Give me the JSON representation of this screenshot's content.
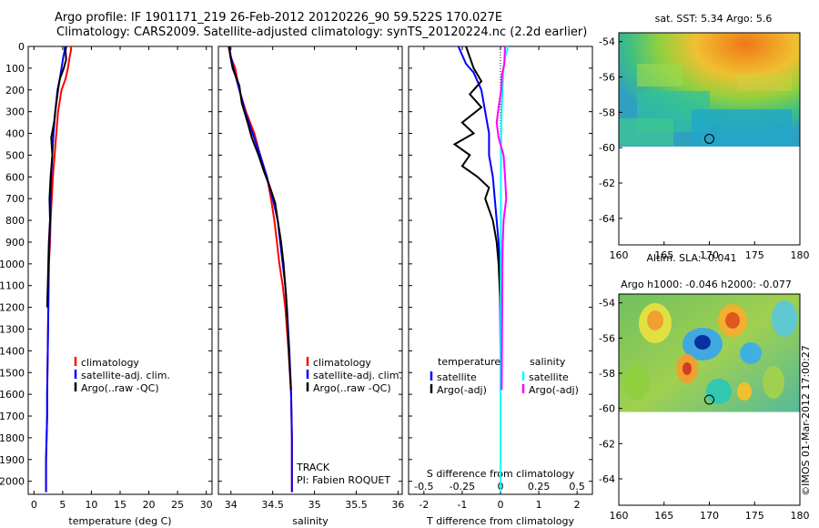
{
  "title_line1": "Argo profile: IF 1901171_219 26-Feb-2012 20120226_90 59.522S 170.027E",
  "title_line2": "Climatology: CARS2009. Satellite-adjusted climatology: synTS_20120224.nc (2.2d earlier)",
  "watermark": "©IMOS 01-Mar-2012 17:00:27",
  "colors": {
    "climatology": "#ff0000",
    "satellite": "#0000ff",
    "argo": "#000000",
    "salinity_satellite": "#00ffff",
    "salinity_argo": "#ff00ff",
    "dotted": "#000000"
  },
  "depth_axis": {
    "ticks": [
      "0",
      "100",
      "200",
      "300",
      "400",
      "500",
      "600",
      "700",
      "800",
      "900",
      "1000",
      "1100",
      "1200",
      "1300",
      "1400",
      "1500",
      "1600",
      "1700",
      "1800",
      "1900",
      "2000"
    ]
  },
  "chart_data": [
    {
      "id": "temperature",
      "type": "line",
      "xlabel": "temperature (deg C)",
      "xlim": [
        -1,
        31
      ],
      "ylim": [
        2060,
        0
      ],
      "xticks": [
        "0",
        "5",
        "10",
        "15",
        "20",
        "25",
        "30"
      ],
      "legend": [
        "climatology",
        "satellite-adj. clim.",
        "Argo(..raw -QC)"
      ],
      "series": [
        {
          "name": "climatology",
          "color": "#ff0000",
          "x": [
            6.5,
            6.4,
            6.2,
            5.9,
            5.5,
            4.8,
            4.2,
            3.9,
            3.6,
            3.3,
            3.1,
            2.9,
            2.8,
            2.6,
            2.5,
            2.4,
            2.3,
            2.3,
            2.2,
            2.1,
            2.1
          ],
          "y": [
            0,
            25,
            50,
            100,
            150,
            200,
            300,
            400,
            500,
            600,
            700,
            800,
            900,
            1000,
            1200,
            1400,
            1600,
            1700,
            1800,
            1900,
            2050
          ]
        },
        {
          "name": "satellite-adj. clim.",
          "color": "#0000ff",
          "x": [
            5.4,
            5.3,
            5.1,
            4.8,
            4.5,
            4.1,
            3.7,
            3.4,
            3.2,
            3.0,
            2.9,
            2.8,
            2.7,
            2.6,
            2.5,
            2.4,
            2.3,
            2.3,
            2.2,
            2.1,
            2.1
          ],
          "y": [
            0,
            25,
            50,
            100,
            150,
            200,
            300,
            400,
            500,
            600,
            700,
            800,
            900,
            1000,
            1200,
            1400,
            1600,
            1700,
            1800,
            1900,
            2050
          ]
        },
        {
          "name": "Argo(..raw -QC)",
          "color": "#000000",
          "x": [
            5.6,
            5.5,
            5.6,
            5.2,
            4.5,
            4.2,
            3.8,
            3.5,
            3.0,
            3.2,
            2.9,
            2.7,
            2.8,
            2.6,
            2.5,
            2.4,
            2.3
          ],
          "y": [
            0,
            20,
            60,
            100,
            150,
            200,
            280,
            350,
            420,
            500,
            600,
            700,
            800,
            900,
            1000,
            1100,
            1200
          ]
        }
      ]
    },
    {
      "id": "salinity",
      "type": "line",
      "xlabel": "salinity",
      "xlim": [
        33.85,
        36.05
      ],
      "ylim": [
        2060,
        0
      ],
      "xticks": [
        "34",
        "34.5",
        "35",
        "35.5",
        "36"
      ],
      "legend": [
        "climatology",
        "satellite-adj. clim.",
        "Argo(..raw -QC)"
      ],
      "annotations": [
        "TRACK",
        "PI: Fabien ROQUET"
      ],
      "series": [
        {
          "name": "climatology",
          "color": "#ff0000",
          "x": [
            33.97,
            34.0,
            34.05,
            34.1,
            34.18,
            34.28,
            34.35,
            34.43,
            34.48,
            34.52,
            34.55,
            34.58,
            34.62,
            34.65,
            34.69,
            34.72,
            34.73,
            34.73
          ],
          "y": [
            0,
            50,
            100,
            200,
            300,
            400,
            500,
            600,
            700,
            800,
            900,
            1000,
            1100,
            1200,
            1400,
            1600,
            1800,
            2050
          ]
        },
        {
          "name": "satellite-adj. clim.",
          "color": "#0000ff",
          "x": [
            33.98,
            34.0,
            34.03,
            34.1,
            34.17,
            34.26,
            34.35,
            34.43,
            34.5,
            34.56,
            34.59,
            34.62,
            34.65,
            34.67,
            34.7,
            34.72,
            34.73,
            34.73
          ],
          "y": [
            0,
            50,
            100,
            200,
            300,
            400,
            500,
            600,
            700,
            800,
            900,
            1000,
            1100,
            1200,
            1400,
            1600,
            1800,
            2050
          ]
        },
        {
          "name": "Argo(..raw -QC)",
          "color": "#000000",
          "x": [
            33.98,
            33.99,
            34.02,
            34.1,
            34.13,
            34.2,
            34.25,
            34.33,
            34.4,
            34.47,
            34.53,
            34.56,
            34.6,
            34.63,
            34.66,
            34.68,
            34.7,
            34.72
          ],
          "y": [
            0,
            40,
            100,
            180,
            260,
            350,
            420,
            500,
            580,
            650,
            720,
            800,
            900,
            1000,
            1150,
            1300,
            1450,
            1580
          ]
        }
      ]
    },
    {
      "id": "differences",
      "type": "line",
      "xlabel": "T difference from climatology",
      "xlabel_top": "S difference from climatology",
      "xlim": [
        -2.4,
        2.4
      ],
      "ylim": [
        2060,
        0
      ],
      "xticks": [
        "-2",
        "-1",
        "0",
        "1",
        "2"
      ],
      "xticks_salinity": [
        "-0.5",
        "-0.25",
        "0",
        "0.25",
        "0.5"
      ],
      "legend_temperature": {
        "title": "temperature",
        "items": [
          "satellite",
          "Argo(-adj)"
        ]
      },
      "legend_salinity": {
        "title": "salinity",
        "items": [
          "satellite",
          "Argo(-adj)"
        ]
      },
      "series": [
        {
          "name": "temperature satellite",
          "color": "#0000ff",
          "x": [
            -1.1,
            -0.9,
            -0.7,
            -0.5,
            -0.4,
            -0.3,
            -0.3,
            -0.2,
            -0.15,
            -0.1,
            -0.05,
            -0.02,
            0.0,
            0.0
          ],
          "y": [
            0,
            80,
            120,
            200,
            300,
            400,
            500,
            600,
            700,
            800,
            900,
            1000,
            1400,
            2050
          ]
        },
        {
          "name": "temperature Argo(-adj)",
          "color": "#000000",
          "x": [
            -0.9,
            -0.7,
            -0.5,
            -0.8,
            -0.5,
            -1.0,
            -0.7,
            -1.2,
            -0.8,
            -1.0,
            -0.6,
            -0.3,
            -0.4,
            -0.2,
            -0.1,
            -0.05,
            0.0
          ],
          "y": [
            0,
            100,
            160,
            220,
            280,
            350,
            400,
            450,
            500,
            550,
            600,
            650,
            700,
            800,
            900,
            1000,
            1200
          ]
        },
        {
          "name": "salinity satellite",
          "color": "#00ffff",
          "x": [
            0.2,
            0.12,
            0.08,
            0.05,
            0.03,
            0.02,
            0.01,
            0.01,
            0.01,
            0.0,
            0.0
          ],
          "y": [
            0,
            50,
            100,
            200,
            300,
            400,
            600,
            800,
            1000,
            1500,
            2050
          ]
        },
        {
          "name": "salinity Argo(-adj)",
          "color": "#ff00ff",
          "x": [
            0.12,
            0.1,
            0.04,
            0.02,
            -0.05,
            -0.1,
            -0.05,
            0.08,
            0.12,
            0.15,
            0.08,
            0.06,
            0.05,
            0.04,
            0.03
          ],
          "y": [
            0,
            80,
            130,
            200,
            280,
            350,
            420,
            500,
            600,
            700,
            800,
            900,
            1000,
            1300,
            1580
          ]
        }
      ]
    },
    {
      "id": "sst_map",
      "type": "heatmap",
      "title": "sat. SST: 5.34  Argo: 5.6",
      "xlim": [
        160,
        180
      ],
      "ylim": [
        -65.5,
        -53.5
      ],
      "xticks": [
        "160",
        "165",
        "170",
        "175",
        "180"
      ],
      "yticks": [
        "-54",
        "-56",
        "-58",
        "-60",
        "-62",
        "-64"
      ],
      "data_lat_range": [
        -60.2,
        -53.5
      ],
      "profile_marker": {
        "lon": 170.0,
        "lat": -59.5
      }
    },
    {
      "id": "sla_map",
      "type": "heatmap",
      "title": "Altim. SLA: -0.041",
      "subtitle": "Argo h1000: -0.046 h2000: -0.077",
      "xlim": [
        160,
        180
      ],
      "ylim": [
        -65.5,
        -53.5
      ],
      "xticks": [
        "160",
        "165",
        "170",
        "175",
        "180"
      ],
      "yticks": [
        "-54",
        "-56",
        "-58",
        "-60",
        "-62",
        "-64"
      ],
      "data_lat_range": [
        -60.2,
        -53.5
      ],
      "profile_marker": {
        "lon": 170.0,
        "lat": -59.5
      }
    }
  ]
}
